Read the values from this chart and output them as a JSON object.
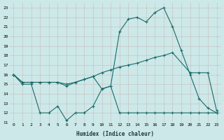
{
  "xlabel": "Humidex (Indice chaleur)",
  "xlim": [
    -0.5,
    23.5
  ],
  "ylim": [
    11,
    23.5
  ],
  "yticks": [
    11,
    12,
    13,
    14,
    15,
    16,
    17,
    18,
    19,
    20,
    21,
    22,
    23
  ],
  "xticks": [
    0,
    1,
    2,
    3,
    4,
    5,
    6,
    7,
    8,
    9,
    10,
    11,
    12,
    13,
    14,
    15,
    16,
    17,
    18,
    19,
    20,
    21,
    22,
    23
  ],
  "bg_color": "#cde8e8",
  "line_color": "#1a6b6b",
  "line1_x": [
    0,
    1,
    2,
    3,
    4,
    5,
    6,
    7,
    8,
    9,
    10,
    11,
    12,
    13,
    14,
    15,
    16,
    17,
    18,
    19,
    20,
    21,
    22,
    23
  ],
  "line1_y": [
    16,
    15,
    15,
    12,
    12,
    12.7,
    11.2,
    12,
    12,
    12.7,
    14.5,
    14.8,
    12,
    12,
    12,
    12,
    12,
    12,
    12,
    12,
    12,
    12,
    12,
    12
  ],
  "line2_x": [
    0,
    1,
    2,
    3,
    4,
    5,
    6,
    7,
    8,
    9,
    10,
    11,
    12,
    13,
    14,
    15,
    16,
    17,
    18,
    20,
    21,
    22,
    23
  ],
  "line2_y": [
    16,
    15.2,
    15.2,
    15.2,
    15.2,
    15.2,
    15,
    15.2,
    15.5,
    15.8,
    16.2,
    16.5,
    16.8,
    17,
    17.2,
    17.5,
    17.8,
    18,
    18.3,
    16.2,
    16.2,
    16.2,
    12.2
  ],
  "line3_x": [
    0,
    1,
    2,
    3,
    4,
    5,
    6,
    7,
    8,
    9,
    10,
    11,
    12,
    13,
    14,
    15,
    16,
    17,
    18,
    19,
    20,
    21,
    22,
    23
  ],
  "line3_y": [
    16,
    15.2,
    15.2,
    15.2,
    15.2,
    15.2,
    14.8,
    15.2,
    15.5,
    15.8,
    14.5,
    14.8,
    20.5,
    21.8,
    22,
    21.5,
    22.5,
    23,
    21,
    18.5,
    16,
    13.5,
    12.5,
    12
  ]
}
